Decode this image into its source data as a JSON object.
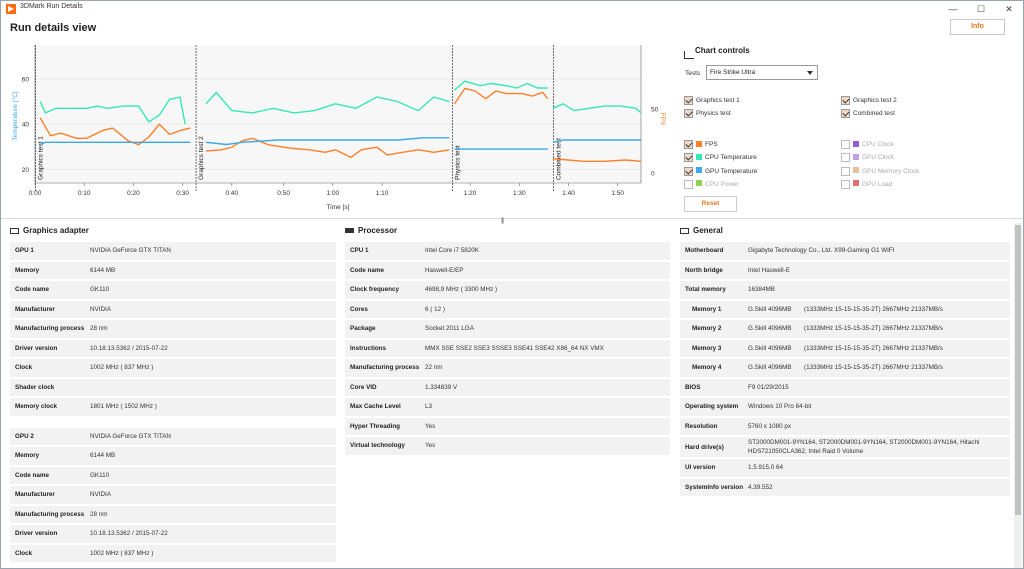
{
  "window": {
    "title": "3DMark Run Details",
    "minimize": "—",
    "maximize": "☐",
    "close": "✕"
  },
  "header": {
    "title": "Run details view",
    "info_button": "Info"
  },
  "colors": {
    "fps": "#ff7f27",
    "cpu_temp": "#34e8b4",
    "gpu_temp": "#3ca8e8",
    "cpu_power": "#8fd052",
    "cpu_clock": "#9a5ad6",
    "gpu_clock": "#c0a0e0",
    "gpu_mem_clock": "#e8c0a0",
    "gpu_load": "#e07070",
    "accent": "#e87722"
  },
  "chart_data": {
    "type": "line",
    "xlabel": "Time [s]",
    "ylabel_left": "Temperature [°C]",
    "ylabel_right": "FPS",
    "x_ticks": [
      "0:00",
      "0:10",
      "0:20",
      "0:30",
      "0:40",
      "0:50",
      "1:00",
      "1:10",
      "1:20",
      "1:30",
      "1:40",
      "1:50"
    ],
    "y_left_ticks": [
      "20",
      "40",
      "60"
    ],
    "y_right_ticks": [
      "0",
      "50"
    ],
    "x_range_s": [
      0,
      117
    ],
    "y_left_range": [
      14,
      75
    ],
    "y_right_range": [
      -8,
      100
    ],
    "test_markers": [
      {
        "label": "Graphics test 1",
        "t": 0
      },
      {
        "label": "Graphics test 2",
        "t": 31
      },
      {
        "label": "Physics test",
        "t": 80.5
      },
      {
        "label": "Combined test",
        "t": 100
      }
    ],
    "series": [
      {
        "name": "CPU Temperature",
        "axis": "left",
        "segments": [
          [
            [
              1,
              50
            ],
            [
              2,
              45
            ],
            [
              4,
              47
            ],
            [
              7,
              47
            ],
            [
              10,
              47
            ],
            [
              12,
              48
            ],
            [
              14,
              47
            ],
            [
              17,
              48
            ],
            [
              20,
              48
            ],
            [
              22,
              41
            ],
            [
              24,
              44
            ],
            [
              26,
              51
            ],
            [
              28,
              52
            ],
            [
              29,
              40
            ]
          ],
          [
            [
              33,
              49
            ],
            [
              35,
              54
            ],
            [
              38,
              46
            ],
            [
              42,
              45
            ],
            [
              46,
              47
            ],
            [
              50,
              45
            ],
            [
              54,
              46
            ],
            [
              58,
              49
            ],
            [
              62,
              47
            ],
            [
              66,
              52
            ],
            [
              70,
              50
            ],
            [
              74,
              46
            ],
            [
              77,
              52
            ],
            [
              80,
              50
            ]
          ],
          [
            [
              81,
              55
            ],
            [
              83,
              59
            ],
            [
              86,
              57
            ],
            [
              88,
              58
            ],
            [
              91,
              57
            ],
            [
              93,
              56
            ],
            [
              95,
              58
            ],
            [
              97,
              56
            ],
            [
              99,
              56
            ]
          ],
          [
            [
              100,
              47
            ],
            [
              102,
              49
            ],
            [
              104,
              46
            ],
            [
              107,
              47
            ],
            [
              110,
              48
            ],
            [
              113,
              48
            ],
            [
              116,
              47
            ],
            [
              117,
              45
            ]
          ]
        ]
      },
      {
        "name": "FPS",
        "axis": "right",
        "segments": [
          [
            [
              1,
              43
            ],
            [
              3,
              29
            ],
            [
              5,
              31
            ],
            [
              8,
              27
            ],
            [
              10,
              27
            ],
            [
              13,
              33
            ],
            [
              15,
              35
            ],
            [
              18,
              25
            ],
            [
              20,
              22
            ],
            [
              22,
              28
            ],
            [
              24,
              38
            ],
            [
              26,
              30
            ],
            [
              28,
              33
            ],
            [
              30,
              35
            ]
          ],
          [
            [
              33,
              17
            ],
            [
              36,
              18
            ],
            [
              38,
              20
            ],
            [
              40,
              25
            ],
            [
              42,
              27
            ],
            [
              45,
              22
            ],
            [
              48,
              20
            ],
            [
              50,
              19
            ],
            [
              53,
              18
            ],
            [
              56,
              16
            ],
            [
              58,
              18
            ],
            [
              61,
              12
            ],
            [
              63,
              18
            ],
            [
              66,
              20
            ],
            [
              68,
              14
            ],
            [
              71,
              16
            ],
            [
              74,
              18
            ],
            [
              77,
              16
            ],
            [
              80,
              18
            ]
          ],
          [
            [
              81,
              54
            ],
            [
              82,
              60
            ],
            [
              83,
              66
            ],
            [
              85,
              64
            ],
            [
              87,
              58
            ],
            [
              89,
              64
            ],
            [
              91,
              62
            ],
            [
              94,
              62
            ],
            [
              96,
              60
            ],
            [
              98,
              63
            ],
            [
              99,
              58
            ]
          ],
          [
            [
              100,
              11
            ],
            [
              103,
              10
            ],
            [
              106,
              9
            ],
            [
              110,
              9
            ],
            [
              114,
              10
            ],
            [
              117,
              9
            ]
          ]
        ]
      },
      {
        "name": "GPU Temperature",
        "axis": "left",
        "segments": [
          [
            [
              1,
              31
            ],
            [
              2,
              32
            ],
            [
              30,
              32
            ]
          ],
          [
            [
              33,
              32
            ],
            [
              37,
              31
            ],
            [
              40,
              32
            ],
            [
              47,
              33
            ],
            [
              60,
              33
            ],
            [
              70,
              33
            ],
            [
              75,
              34
            ],
            [
              80,
              34
            ]
          ],
          [
            [
              81,
              29
            ],
            [
              99,
              29
            ]
          ],
          [
            [
              100,
              32
            ],
            [
              102,
              33
            ],
            [
              117,
              33
            ]
          ]
        ]
      }
    ]
  },
  "controls": {
    "title": "Chart controls",
    "tests_label": "Tests",
    "tests_value": "Fire Strike Ultra",
    "test_checks": [
      {
        "label": "Graphics test 1",
        "checked": true
      },
      {
        "label": "Graphics test 2",
        "checked": true
      },
      {
        "label": "Physics test",
        "checked": true
      },
      {
        "label": "Combined test",
        "checked": true
      }
    ],
    "metric_checks": [
      {
        "label": "FPS",
        "checked": true,
        "color": "#ff7f27"
      },
      {
        "label": "CPU Clock",
        "checked": false,
        "color": "#9a5ad6"
      },
      {
        "label": "CPU Temperature",
        "checked": true,
        "color": "#34e8b4"
      },
      {
        "label": "GPU Clock",
        "checked": false,
        "color": "#c0a0e0"
      },
      {
        "label": "GPU Temperature",
        "checked": true,
        "color": "#3ca8e8"
      },
      {
        "label": "GPU Memory Clock",
        "checked": false,
        "color": "#e8c0a0"
      },
      {
        "label": "CPU Power",
        "checked": false,
        "color": "#8fd052"
      },
      {
        "label": "GPU Load",
        "checked": false,
        "color": "#e07070"
      }
    ],
    "reset": "Reset"
  },
  "graphics": {
    "title": "Graphics adapter",
    "gpu1": [
      [
        "GPU 1",
        "NVIDIA GeForce GTX TITAN"
      ],
      [
        "Memory",
        "6144 MB"
      ],
      [
        "Code name",
        "GK110"
      ],
      [
        "Manufacturer",
        "NVIDIA"
      ],
      [
        "Manufacturing process",
        "28 nm"
      ],
      [
        "Driver version",
        "10.18.13.5362 / 2015-07-22"
      ],
      [
        "Clock",
        "1002 MHz ( 837 MHz )"
      ],
      [
        "Shader clock",
        ""
      ],
      [
        "Memory clock",
        "1801 MHz ( 1502 MHz )"
      ]
    ],
    "gpu2": [
      [
        "GPU 2",
        "NVIDIA GeForce GTX TITAN"
      ],
      [
        "Memory",
        "6144 MB"
      ],
      [
        "Code name",
        "GK110"
      ],
      [
        "Manufacturer",
        "NVIDIA"
      ],
      [
        "Manufacturing process",
        "28 nm"
      ],
      [
        "Driver version",
        "10.18.13.5362 / 2015-07-22"
      ],
      [
        "Clock",
        "1002 MHz ( 837 MHz )"
      ]
    ]
  },
  "processor": {
    "title": "Processor",
    "rows": [
      [
        "CPU 1",
        "Intel Core i7 5820K"
      ],
      [
        "Code name",
        "Haswell-E/EP"
      ],
      [
        "Clock frequency",
        "4698,9 MHz ( 3300 MHz )"
      ],
      [
        "Cores",
        "6 ( 12 )"
      ],
      [
        "Package",
        "Socket 2011 LGA"
      ],
      [
        "Instructions",
        "MMX SSE SSE2 SSE3 SSSE3 SSE41 SSE42 X86_64 NX VMX"
      ],
      [
        "Manufacturing process",
        "22 nm"
      ],
      [
        "Core VID",
        "1.334839 V"
      ],
      [
        "Max Cache Level",
        "L3"
      ],
      [
        "Hyper Threading",
        "Yes"
      ],
      [
        "Virtual technology",
        "Yes"
      ]
    ]
  },
  "general": {
    "title": "General",
    "rows": [
      [
        "Motherboard",
        "Gigabyte Technology Co., Ltd. X99-Gaming G1 WIFI"
      ],
      [
        "North bridge",
        "Intel Haswell-E"
      ],
      [
        "Total memory",
        "16384MB"
      ]
    ],
    "memory": [
      [
        "Memory 1",
        "G.Skill 4096MB",
        "(1333MHz 15-15-15-35-2T) 2667MHz 21337MB/s"
      ],
      [
        "Memory 2",
        "G.Skill 4096MB",
        "(1333MHz 15-15-15-35-2T) 2667MHz 21337MB/s"
      ],
      [
        "Memory 3",
        "G.Skill 4096MB",
        "(1333MHz 15-15-15-35-2T) 2667MHz 21337MB/s"
      ],
      [
        "Memory 4",
        "G.Skill 4096MB",
        "(1333MHz 15-15-15-35-2T) 2667MHz 21337MB/s"
      ]
    ],
    "rows2": [
      [
        "BIOS",
        "F9 01/29/2015"
      ],
      [
        "Operating system",
        "Windows 10 Pro 64-bit"
      ],
      [
        "Resolution",
        "5760 x 1080 px"
      ],
      [
        "Hard drive(s)",
        "ST2000DM001-9YN164, ST2000DM001-9YN164, ST2000DM001-9YN164, Hitachi HDS721050CLA362, Intel Raid 0 Volume"
      ],
      [
        "UI version",
        "1.5.915.0 64"
      ],
      [
        "SystemInfo version",
        "4.39.552"
      ]
    ]
  }
}
